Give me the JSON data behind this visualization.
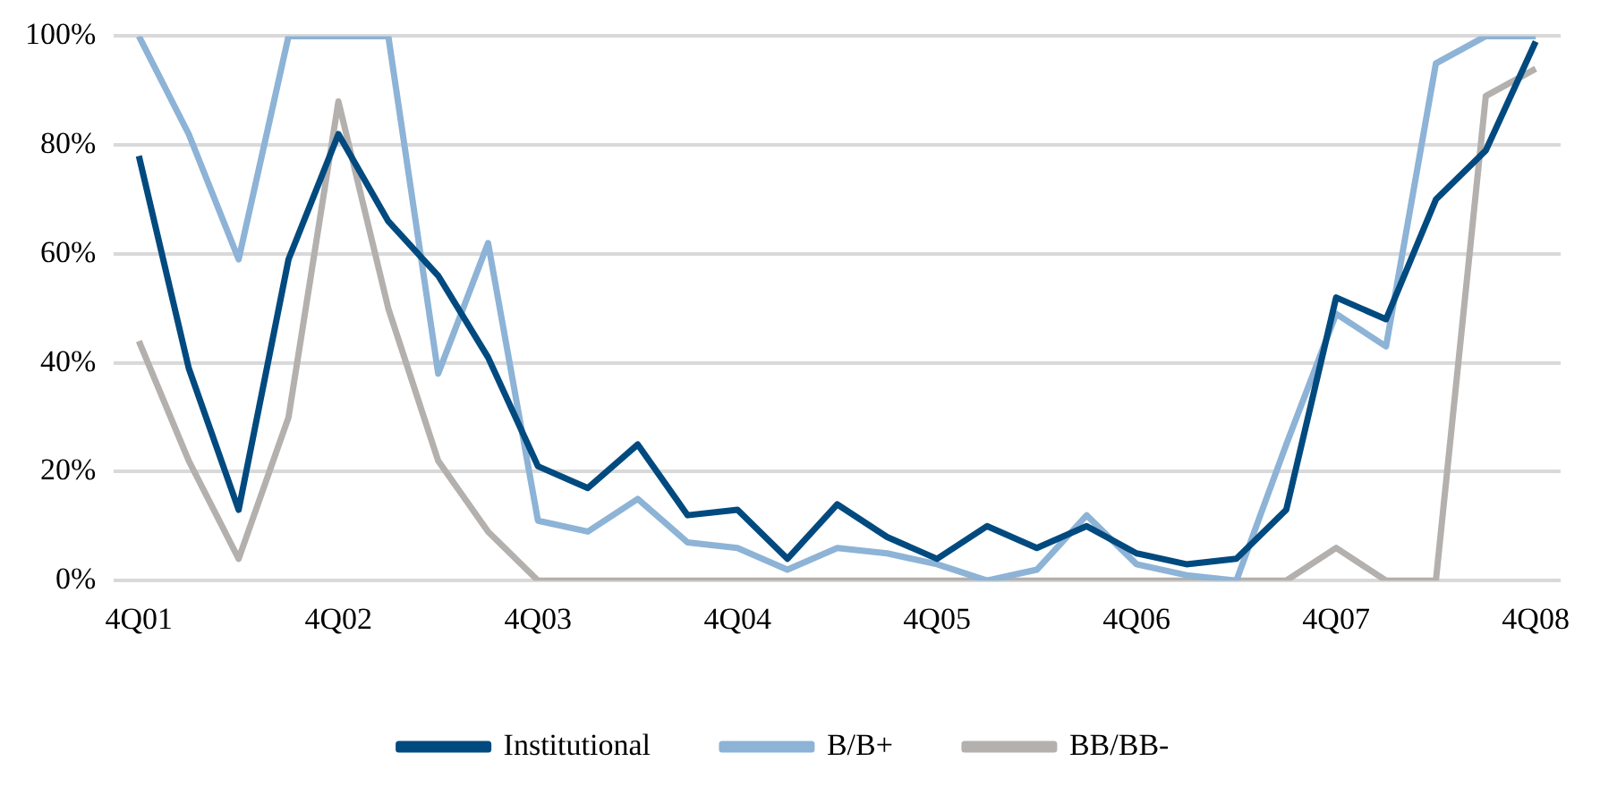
{
  "chart_data": {
    "type": "line",
    "categories": [
      "4Q01",
      null,
      null,
      null,
      "4Q02",
      null,
      null,
      null,
      "4Q03",
      null,
      null,
      null,
      "4Q04",
      null,
      null,
      null,
      "4Q05",
      null,
      null,
      null,
      "4Q06",
      null,
      null,
      null,
      "4Q07",
      null,
      null,
      null,
      "4Q08"
    ],
    "series": [
      {
        "name": "Institutional",
        "color": "#004a7f",
        "values": [
          78,
          39,
          13,
          59,
          82,
          66,
          56,
          41,
          21,
          17,
          25,
          12,
          13,
          4,
          14,
          8,
          4,
          10,
          6,
          10,
          5,
          3,
          4,
          13,
          52,
          48,
          70,
          79,
          99
        ]
      },
      {
        "name": "B/B+",
        "color": "#8db3d6",
        "values": [
          100,
          82,
          59,
          100,
          100,
          100,
          38,
          62,
          11,
          9,
          15,
          7,
          6,
          2,
          6,
          5,
          3,
          0,
          2,
          12,
          3,
          1,
          0,
          25,
          49,
          43,
          95,
          100,
          100
        ]
      },
      {
        "name": "BB/BB-",
        "color": "#b3b0ad",
        "values": [
          44,
          22,
          4,
          30,
          88,
          50,
          22,
          9,
          0,
          0,
          0,
          0,
          0,
          0,
          0,
          0,
          0,
          0,
          0,
          0,
          0,
          0,
          0,
          0,
          6,
          0,
          0,
          89,
          94
        ]
      }
    ],
    "ylim": [
      0,
      100
    ],
    "yticks": [
      {
        "value": 0,
        "label": "0%"
      },
      {
        "value": 20,
        "label": "20%"
      },
      {
        "value": 40,
        "label": "40%"
      },
      {
        "value": 60,
        "label": "60%"
      },
      {
        "value": 80,
        "label": "80%"
      },
      {
        "value": 100,
        "label": "100%"
      }
    ],
    "grid": "y",
    "legend": "bottom",
    "marker": "none",
    "line_style": "solid"
  }
}
